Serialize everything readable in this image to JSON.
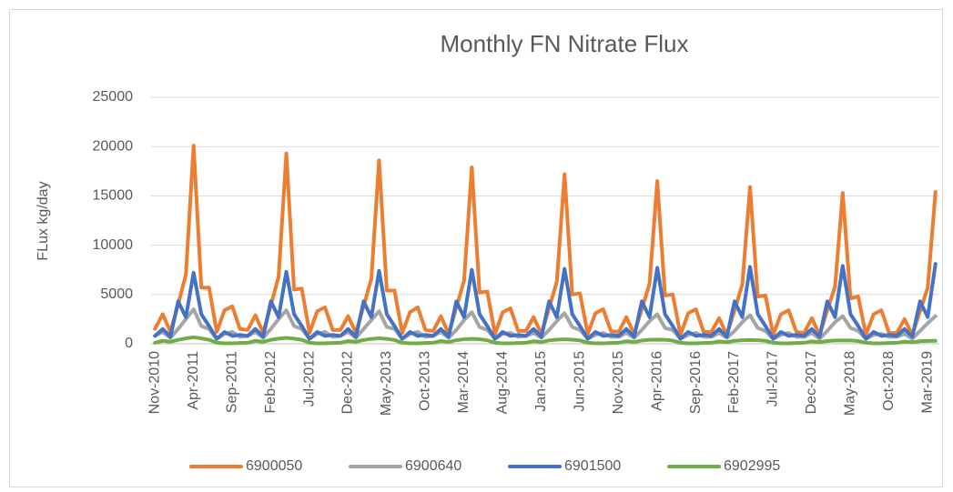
{
  "chart_data": {
    "type": "line",
    "title": "Monthly FN Nitrate Flux",
    "y_label": "FLux kg/day",
    "categories": [
      "Nov-2010",
      null,
      null,
      null,
      null,
      "Apr-2011",
      null,
      null,
      null,
      null,
      "Sep-2011",
      null,
      null,
      null,
      null,
      "Feb-2012",
      null,
      null,
      null,
      null,
      "Jul-2012",
      null,
      null,
      null,
      null,
      "Dec-2012",
      null,
      null,
      null,
      null,
      "May-2013",
      null,
      null,
      null,
      null,
      "Oct-2013",
      null,
      null,
      null,
      null,
      "Mar-2014",
      null,
      null,
      null,
      null,
      "Aug-2014",
      null,
      null,
      null,
      null,
      "Jan-2015",
      null,
      null,
      null,
      null,
      "Jun-2015",
      null,
      null,
      null,
      null,
      "Nov-2015",
      null,
      null,
      null,
      null,
      "Apr-2016",
      null,
      null,
      null,
      null,
      "Sep-2016",
      null,
      null,
      null,
      null,
      "Feb-2017",
      null,
      null,
      null,
      null,
      "Jul-2017",
      null,
      null,
      null,
      null,
      "Dec-2017",
      null,
      null,
      null,
      null,
      "May-2018",
      null,
      null,
      null,
      null,
      "Oct-2018",
      null,
      null,
      null,
      null,
      "Mar-2019",
      null
    ],
    "series": [
      {
        "name": "6900050",
        "color": "#ed7d31",
        "values": [
          1500,
          3000,
          1200,
          4000,
          7000,
          20100,
          5700,
          5700,
          1200,
          3400,
          3800,
          1500,
          1400,
          2900,
          1100,
          3900,
          6800,
          19300,
          5500,
          5600,
          1100,
          3300,
          3700,
          1400,
          1400,
          2800,
          1100,
          3800,
          6600,
          18600,
          5400,
          5400,
          1100,
          3200,
          3700,
          1400,
          1300,
          2800,
          1000,
          3700,
          6400,
          17900,
          5200,
          5300,
          1000,
          3200,
          3600,
          1300,
          1300,
          2700,
          1000,
          3600,
          6300,
          17200,
          5000,
          5100,
          1000,
          3100,
          3500,
          1300,
          1200,
          2700,
          1000,
          3500,
          6100,
          16500,
          4900,
          5000,
          900,
          3100,
          3500,
          1200,
          1200,
          2600,
          900,
          3400,
          6000,
          15900,
          4800,
          4900,
          900,
          3000,
          3400,
          1200,
          1100,
          2600,
          900,
          3400,
          5800,
          15300,
          4600,
          4800,
          900,
          3000,
          3400,
          1100,
          1100,
          2500,
          900,
          3300,
          5700,
          15400
        ]
      },
      {
        "name": "6900640",
        "color": "#a5a5a5",
        "values": [
          800,
          1200,
          600,
          1500,
          2500,
          3500,
          1800,
          1500,
          500,
          1000,
          1200,
          700,
          800,
          1200,
          600,
          1500,
          2500,
          3400,
          1800,
          1500,
          500,
          1000,
          1200,
          700,
          800,
          1200,
          600,
          1500,
          2400,
          3300,
          1700,
          1500,
          500,
          1000,
          1200,
          700,
          800,
          1200,
          600,
          1400,
          2400,
          3200,
          1700,
          1400,
          500,
          1000,
          1100,
          700,
          800,
          1100,
          600,
          1400,
          2300,
          3100,
          1700,
          1400,
          500,
          900,
          1100,
          700,
          700,
          1100,
          600,
          1400,
          2300,
          3000,
          1600,
          1400,
          500,
          900,
          1100,
          700,
          700,
          1100,
          600,
          1300,
          2200,
          2900,
          1600,
          1300,
          500,
          900,
          1100,
          700,
          700,
          1100,
          500,
          1300,
          2200,
          2800,
          1600,
          1300,
          500,
          900,
          1000,
          700,
          700,
          1000,
          500,
          1300,
          2100,
          2800
        ]
      },
      {
        "name": "6901500",
        "color": "#4472c4",
        "values": [
          800,
          1500,
          700,
          4300,
          2700,
          7200,
          3000,
          1800,
          500,
          1200,
          800,
          900,
          800,
          1500,
          700,
          4300,
          2700,
          7300,
          3000,
          1800,
          500,
          1200,
          800,
          900,
          800,
          1500,
          700,
          4300,
          2700,
          7400,
          3000,
          1800,
          500,
          1200,
          800,
          900,
          800,
          1500,
          700,
          4300,
          2700,
          7500,
          3000,
          1800,
          500,
          1200,
          800,
          900,
          800,
          1500,
          700,
          4300,
          2700,
          7600,
          3000,
          1800,
          500,
          1200,
          800,
          900,
          800,
          1500,
          700,
          4300,
          2700,
          7700,
          3000,
          1800,
          500,
          1200,
          800,
          900,
          800,
          1500,
          700,
          4300,
          2700,
          7800,
          3000,
          1800,
          500,
          1200,
          800,
          900,
          800,
          1500,
          700,
          4300,
          2700,
          7900,
          3000,
          1800,
          500,
          1200,
          800,
          900,
          800,
          1500,
          700,
          4300,
          2700,
          8100
        ]
      },
      {
        "name": "6902995",
        "color": "#70ad47",
        "values": [
          100,
          300,
          200,
          400,
          550,
          650,
          550,
          400,
          100,
          50,
          50,
          80,
          100,
          300,
          200,
          400,
          520,
          600,
          520,
          400,
          100,
          50,
          50,
          80,
          100,
          280,
          200,
          380,
          500,
          550,
          500,
          380,
          100,
          50,
          50,
          80,
          100,
          280,
          180,
          360,
          460,
          500,
          460,
          360,
          100,
          50,
          50,
          80,
          100,
          260,
          180,
          340,
          420,
          450,
          420,
          340,
          100,
          50,
          50,
          80,
          100,
          260,
          180,
          320,
          400,
          420,
          400,
          320,
          100,
          50,
          50,
          80,
          100,
          240,
          160,
          300,
          360,
          380,
          360,
          300,
          100,
          50,
          50,
          80,
          100,
          240,
          160,
          280,
          330,
          350,
          330,
          280,
          100,
          50,
          50,
          80,
          100,
          220,
          150,
          260,
          290,
          300
        ]
      }
    ],
    "ylim": [
      0,
      25000
    ],
    "yticks": [
      0,
      5000,
      10000,
      15000,
      20000,
      25000
    ],
    "grid": true,
    "legend": "bottom"
  }
}
